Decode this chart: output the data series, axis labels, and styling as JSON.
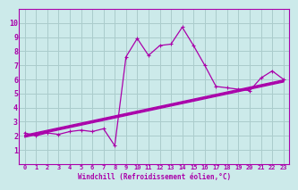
{
  "xlabel": "Windchill (Refroidissement éolien,°C)",
  "bg_color": "#cceaea",
  "grid_color": "#aacccc",
  "line_color": "#aa00aa",
  "x_data": [
    0,
    1,
    2,
    3,
    4,
    5,
    6,
    7,
    8,
    9,
    10,
    11,
    12,
    13,
    14,
    15,
    16,
    17,
    18,
    19,
    20,
    21,
    22,
    23
  ],
  "main_series": [
    2.2,
    2.0,
    2.2,
    2.1,
    2.3,
    2.4,
    2.3,
    2.5,
    1.3,
    7.6,
    8.9,
    7.7,
    8.4,
    8.5,
    9.7,
    8.4,
    7.0,
    5.5,
    5.4,
    5.3,
    5.2,
    6.1,
    6.6,
    6.0
  ],
  "linear_series": [
    [
      2.05,
      2.22,
      2.39,
      2.56,
      2.73,
      2.9,
      3.07,
      3.24,
      3.41,
      3.58,
      3.75,
      3.92,
      4.09,
      4.26,
      4.43,
      4.6,
      4.77,
      4.94,
      5.11,
      5.28,
      5.45,
      5.62,
      5.79,
      5.96
    ],
    [
      2.0,
      2.17,
      2.34,
      2.51,
      2.68,
      2.85,
      3.02,
      3.19,
      3.36,
      3.53,
      3.7,
      3.87,
      4.04,
      4.21,
      4.38,
      4.55,
      4.72,
      4.89,
      5.06,
      5.23,
      5.4,
      5.57,
      5.74,
      5.91
    ],
    [
      1.95,
      2.12,
      2.29,
      2.46,
      2.63,
      2.8,
      2.97,
      3.14,
      3.31,
      3.48,
      3.65,
      3.82,
      3.99,
      4.16,
      4.33,
      4.5,
      4.67,
      4.84,
      5.01,
      5.18,
      5.35,
      5.52,
      5.69,
      5.86
    ],
    [
      1.9,
      2.07,
      2.24,
      2.41,
      2.58,
      2.75,
      2.92,
      3.09,
      3.26,
      3.43,
      3.6,
      3.77,
      3.94,
      4.11,
      4.28,
      4.45,
      4.62,
      4.79,
      4.96,
      5.13,
      5.3,
      5.47,
      5.64,
      5.81
    ]
  ],
  "xlim": [
    -0.5,
    23.5
  ],
  "ylim": [
    0,
    11
  ],
  "yticks": [
    1,
    2,
    3,
    4,
    5,
    6,
    7,
    8,
    9,
    10
  ],
  "xticks": [
    0,
    1,
    2,
    3,
    4,
    5,
    6,
    7,
    8,
    9,
    10,
    11,
    12,
    13,
    14,
    15,
    16,
    17,
    18,
    19,
    20,
    21,
    22,
    23
  ]
}
